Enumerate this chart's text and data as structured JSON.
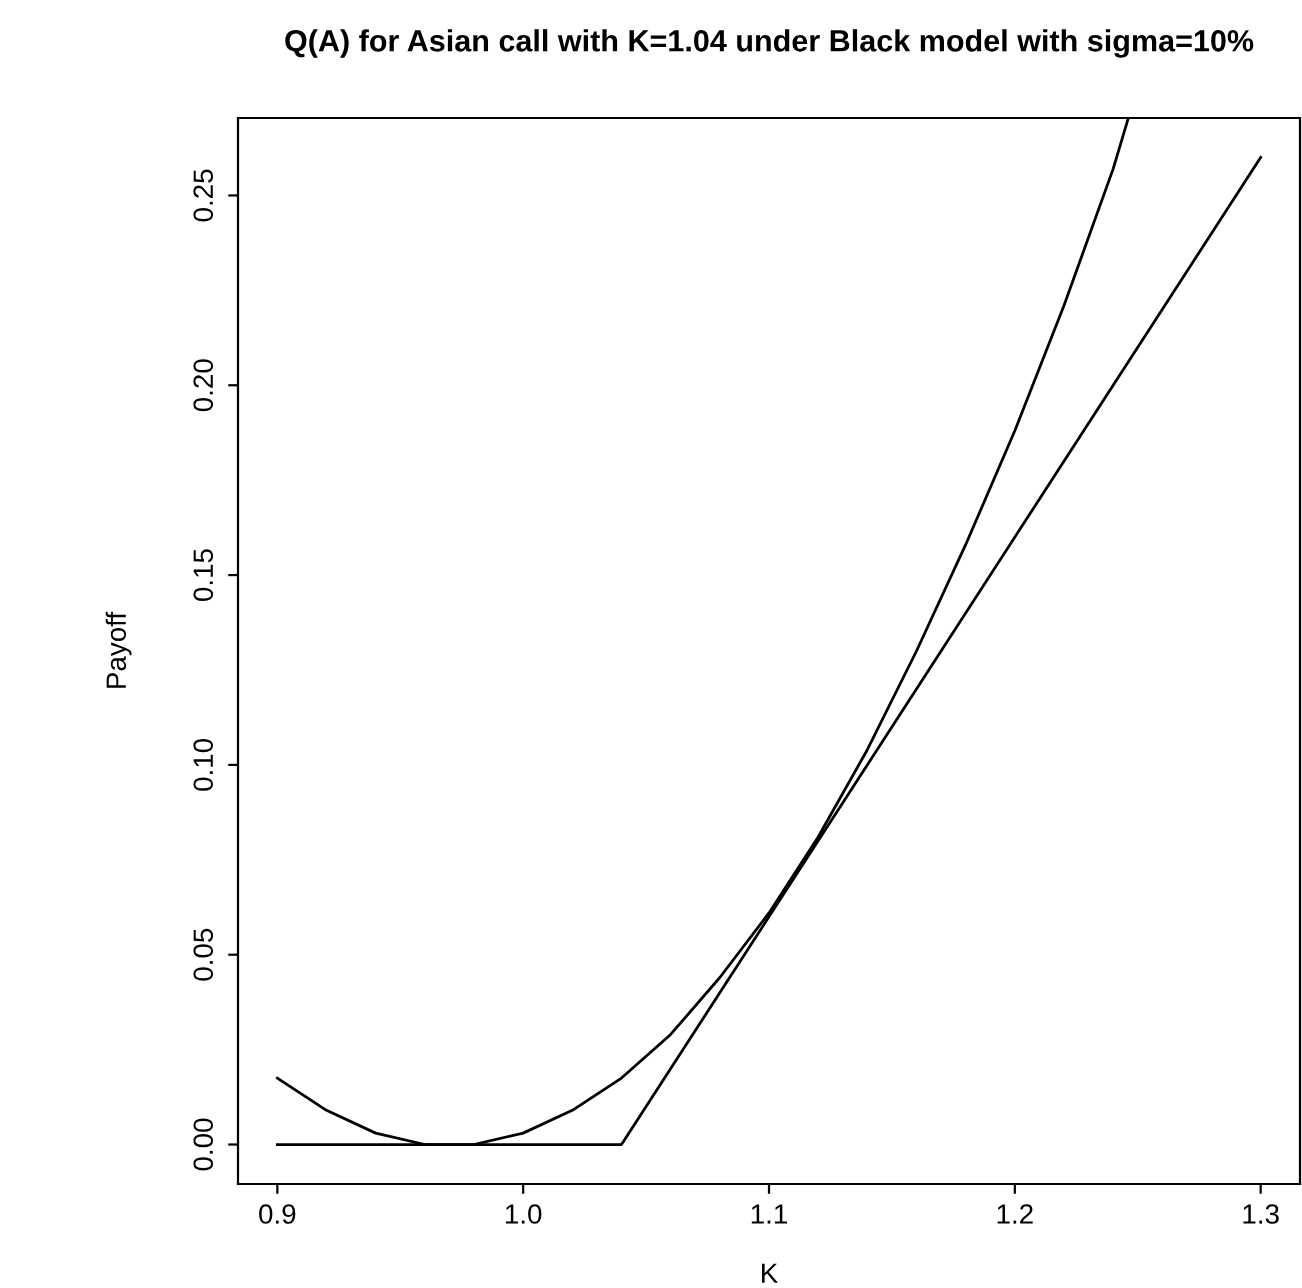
{
  "chart_data": {
    "type": "line",
    "title": "Q(A) for Asian call with K=1.04 under Black model with sigma=10%",
    "xlabel": "K",
    "ylabel": "Payoff",
    "series": [
      {
        "color": "#000000",
        "x": [
          0.9,
          1.04,
          1.3
        ],
        "values": [
          0,
          0,
          0.26
        ]
      },
      {
        "color": "#000000",
        "x": [
          0.9,
          0.92,
          0.94,
          0.96,
          0.98,
          1.0,
          1.02,
          1.04,
          1.06,
          1.08,
          1.1,
          1.12,
          1.14,
          1.16,
          1.18,
          1.2,
          1.22,
          1.24,
          1.246
        ],
        "values": [
          0.0175,
          0.009,
          0.003,
          0,
          0,
          0.003,
          0.009,
          0.0175,
          0.029,
          0.044,
          0.061,
          0.081,
          0.104,
          0.13,
          0.158,
          0.188,
          0.221,
          0.257,
          0.27
        ]
      }
    ],
    "xlim": [
      0.884,
      1.316
    ],
    "ylim": [
      -0.0104,
      0.2704
    ],
    "xticks": [
      0.9,
      {
        "value": 1.0,
        "label": "1.0"
      },
      1.1,
      1.2,
      1.3
    ],
    "yticks": [
      {
        "value": 0,
        "label": "0.00"
      },
      {
        "value": 0.05,
        "label": "0.05"
      },
      {
        "value": 0.1,
        "label": "0.10"
      },
      {
        "value": 0.15,
        "label": "0.15"
      },
      {
        "value": 0.2,
        "label": "0.20"
      },
      {
        "value": 0.25,
        "label": "0.25"
      }
    ],
    "grid": false,
    "marker": "none",
    "line_style": "solid"
  }
}
